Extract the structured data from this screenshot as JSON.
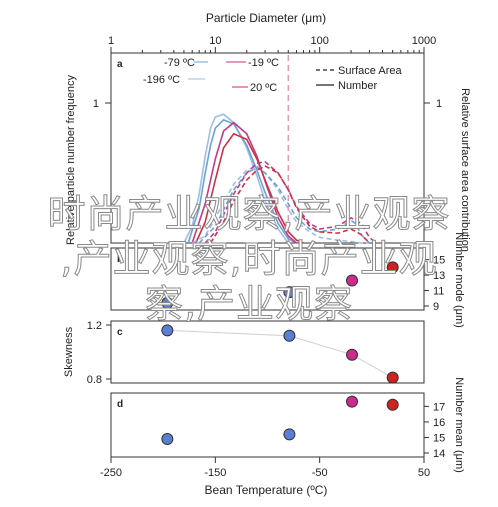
{
  "chart_data": [
    {
      "panel": "a",
      "type": "line",
      "top_axis": {
        "title": "Particle Diameter (μm)",
        "scale": "log",
        "range": [
          1,
          1000
        ],
        "ticks": [
          "1",
          "10",
          "100",
          "1000"
        ]
      },
      "left_axis": {
        "title": "Relative particle number frequency",
        "ticks": [
          "1"
        ]
      },
      "right_axis": {
        "title": "Relative surface area contribution",
        "ticks": [
          "1"
        ]
      },
      "legend": {
        "placement": "top-right",
        "entries": [
          {
            "label": "Surface Area",
            "style": "dashed"
          },
          {
            "label": "Number",
            "style": "solid"
          }
        ]
      },
      "temperature_labels": [
        {
          "label": "-79 ºC",
          "color": "#6aa2d8"
        },
        {
          "label": "-196 ºC",
          "color": "#9fbde8"
        },
        {
          "label": "-19 ºC",
          "color": "#c43a8a"
        },
        {
          "label": "20 ºC",
          "color": "#d03040"
        }
      ],
      "reference_line_diameter": 50,
      "series": [
        {
          "name": "-196 ºC",
          "style": "solid",
          "color": "#9fbde8",
          "x": [
            5,
            6,
            7,
            8,
            9,
            10,
            12,
            15,
            20,
            25,
            30,
            40,
            50
          ],
          "y": [
            0,
            0.12,
            0.35,
            0.62,
            0.82,
            0.9,
            0.92,
            0.86,
            0.68,
            0.48,
            0.3,
            0.1,
            0
          ]
        },
        {
          "name": "-79 ºC",
          "style": "solid",
          "color": "#6aa2d8",
          "x": [
            5.5,
            7,
            8,
            9,
            10,
            12,
            15,
            20,
            25,
            30,
            40,
            50,
            60
          ],
          "y": [
            0,
            0.25,
            0.5,
            0.7,
            0.82,
            0.88,
            0.85,
            0.7,
            0.52,
            0.36,
            0.14,
            0.03,
            0
          ]
        },
        {
          "name": "-19 ºC",
          "style": "solid",
          "color": "#c43a8a",
          "x": [
            6,
            8,
            10,
            12,
            15,
            20,
            25,
            30,
            40,
            50,
            60
          ],
          "y": [
            0,
            0.28,
            0.6,
            0.8,
            0.86,
            0.78,
            0.62,
            0.44,
            0.18,
            0.05,
            0
          ]
        },
        {
          "name": "20 ºC",
          "style": "solid",
          "color": "#d03040",
          "x": [
            6.5,
            8,
            10,
            12,
            15,
            20,
            25,
            30,
            40,
            50,
            60,
            70
          ],
          "y": [
            0,
            0.15,
            0.45,
            0.68,
            0.78,
            0.74,
            0.6,
            0.45,
            0.22,
            0.08,
            0.02,
            0
          ]
        },
        {
          "name": "-196 ºC",
          "style": "dashed",
          "color": "#9fbde8",
          "x": [
            6,
            8,
            10,
            15,
            20,
            25,
            30,
            40,
            50,
            60,
            80,
            100,
            150,
            200,
            250,
            300
          ],
          "y": [
            0,
            0.05,
            0.18,
            0.42,
            0.52,
            0.55,
            0.5,
            0.38,
            0.24,
            0.15,
            0.08,
            0.04,
            0.02,
            0.01,
            0,
            0
          ]
        },
        {
          "name": "-79 ºC",
          "style": "dashed",
          "color": "#6aa2d8",
          "x": [
            7,
            10,
            15,
            20,
            25,
            30,
            40,
            50,
            60,
            80,
            100,
            150,
            180,
            200,
            220,
            250,
            300
          ],
          "y": [
            0,
            0.12,
            0.38,
            0.5,
            0.54,
            0.5,
            0.4,
            0.28,
            0.18,
            0.1,
            0.08,
            0.1,
            0.14,
            0.16,
            0.14,
            0.06,
            0
          ]
        },
        {
          "name": "-19 ºC",
          "style": "dashed",
          "color": "#c43a8a",
          "x": [
            8,
            10,
            15,
            20,
            25,
            30,
            40,
            50,
            60,
            80,
            100,
            150,
            200,
            250,
            300,
            350
          ],
          "y": [
            0,
            0.08,
            0.35,
            0.5,
            0.57,
            0.58,
            0.5,
            0.38,
            0.26,
            0.14,
            0.1,
            0.12,
            0.18,
            0.14,
            0.04,
            0
          ]
        },
        {
          "name": "20 ºC",
          "style": "dashed",
          "color": "#d03040",
          "x": [
            9,
            12,
            15,
            20,
            25,
            30,
            40,
            50,
            60,
            80,
            100,
            150,
            200,
            250,
            300
          ],
          "y": [
            0,
            0.15,
            0.3,
            0.45,
            0.52,
            0.55,
            0.5,
            0.38,
            0.25,
            0.12,
            0.08,
            0.07,
            0.1,
            0.06,
            0
          ]
        }
      ]
    },
    {
      "panel": "b",
      "type": "scatter",
      "right_axis": {
        "title": "Number mode (μm)",
        "ticks": [
          "9",
          "11",
          "13",
          "15"
        ],
        "ylim": [
          9,
          16
        ]
      },
      "points": [
        {
          "x": -196,
          "y": 9.4,
          "color": "#5b7fd6"
        },
        {
          "x": -79,
          "y": 10.8,
          "color": "#5b7fd6"
        },
        {
          "x": -19,
          "y": 12.3,
          "color": "#cc2a8c"
        },
        {
          "x": 20,
          "y": 14.0,
          "color": "#cc2222"
        }
      ]
    },
    {
      "panel": "c",
      "type": "scatter",
      "left_axis": {
        "title": "Skewness",
        "ticks": [
          "0.8",
          "1.2"
        ],
        "ylim": [
          0.8,
          1.2
        ]
      },
      "points": [
        {
          "x": -196,
          "y": 1.16,
          "color": "#5b7fd6"
        },
        {
          "x": -79,
          "y": 1.12,
          "color": "#5b7fd6"
        },
        {
          "x": -19,
          "y": 0.98,
          "color": "#cc2a8c"
        },
        {
          "x": 20,
          "y": 0.81,
          "color": "#cc2222"
        }
      ]
    },
    {
      "panel": "d",
      "type": "scatter",
      "right_axis": {
        "title": "Number mean (μm)",
        "ticks": [
          "14",
          "15",
          "16",
          "17"
        ],
        "ylim": [
          14,
          17.6
        ]
      },
      "bottom_axis": {
        "title": "Bean Temperature (ºC)",
        "ticks": [
          "-250",
          "-150",
          "-50",
          "50"
        ],
        "xlim": [
          -250,
          50
        ]
      },
      "points": [
        {
          "x": -196,
          "y": 14.9,
          "color": "#5b7fd6"
        },
        {
          "x": -79,
          "y": 15.2,
          "color": "#5b7fd6"
        },
        {
          "x": -19,
          "y": 17.3,
          "color": "#cc2a8c"
        },
        {
          "x": 20,
          "y": 17.1,
          "color": "#cc2222"
        }
      ]
    }
  ],
  "watermark": {
    "line1": "时尚产业观察,产业观察",
    "line2": ",产业观察,时尚产业观",
    "line3": "察,产业观察"
  }
}
